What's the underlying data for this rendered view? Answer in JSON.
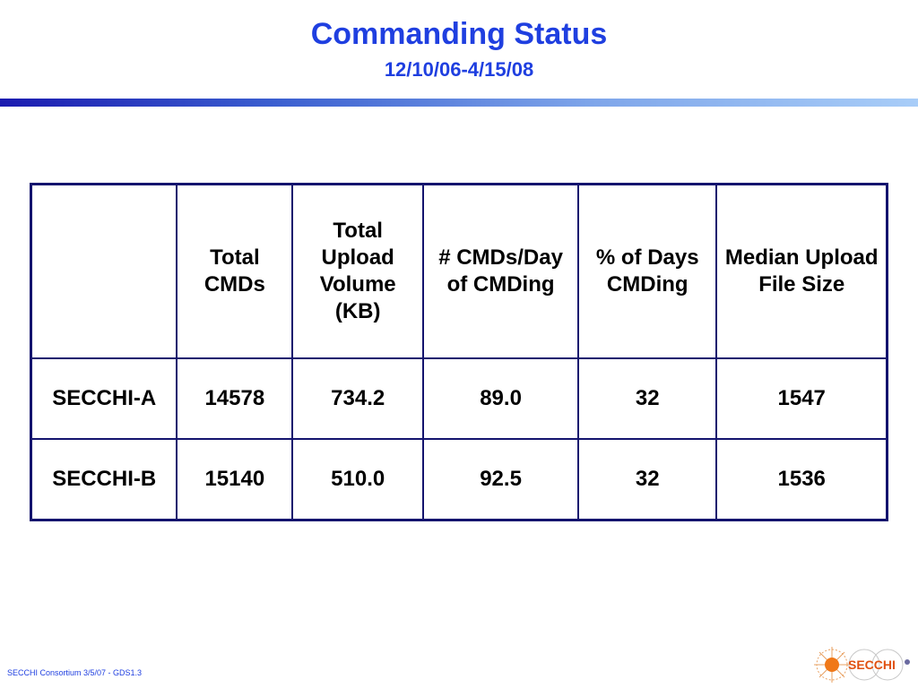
{
  "slide": {
    "title": "Commanding Status",
    "subtitle": "12/10/06-4/15/08"
  },
  "table": {
    "headers": [
      "",
      "Total CMDs",
      "Total Upload Volume (KB)",
      "# CMDs/Day of CMDing",
      "% of Days CMDing",
      "Median Upload File Size"
    ],
    "rows": [
      [
        "SECCHI-A",
        "14578",
        "734.2",
        "89.0",
        "32",
        "1547"
      ],
      [
        "SECCHI-B",
        "15140",
        "510.0",
        "92.5",
        "32",
        "1536"
      ]
    ]
  },
  "footer": {
    "text": "SECCHI Consortium 3/5/07 - GDS1.3"
  },
  "logo": {
    "text": "SECCHI",
    "icon": "secchi-sun-logo-icon"
  },
  "colors": {
    "title": "#1f3fe0",
    "table_border": "#14146e",
    "rule_start": "#1b1bb0",
    "rule_end": "#a8cdf8"
  }
}
